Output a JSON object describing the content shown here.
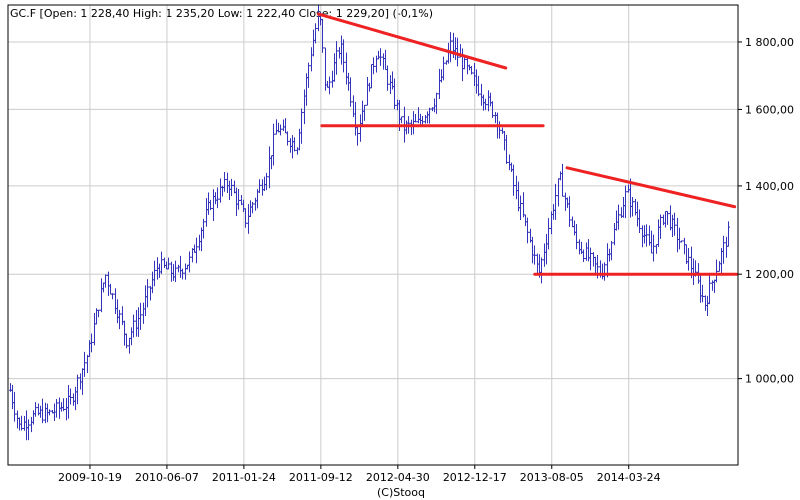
{
  "header": {
    "text": "GC.F [Open: 1 228,40  High: 1 235,20  Low: 1 222,40  Close: 1 229,20] (-0,1%)"
  },
  "footer": {
    "credit": "(C)Stooq"
  },
  "chart_data": {
    "type": "bar",
    "series_style": "ohlc",
    "colors": {
      "bars": "#3333bb",
      "trendlines": "#ee2222",
      "grid": "#cccccc",
      "frame": "#000000"
    },
    "grid": true,
    "y_axis_position": "right",
    "ylim": [
      860,
      1920
    ],
    "y_ticks": [
      {
        "value": 1000,
        "label": "1 000,00"
      },
      {
        "value": 1200,
        "label": "1 200,00"
      },
      {
        "value": 1400,
        "label": "1 400,00"
      },
      {
        "value": 1600,
        "label": "1 600,00"
      },
      {
        "value": 1800,
        "label": "1 800,00"
      }
    ],
    "xlim": [
      "2009-02-15",
      "2015-02-15"
    ],
    "x_ticks": [
      "2009-10-19",
      "2010-06-07",
      "2011-01-24",
      "2011-09-12",
      "2012-04-30",
      "2012-12-17",
      "2013-08-05",
      "2014-03-24"
    ],
    "price_path": [
      [
        "2009-02-20",
        980
      ],
      [
        "2009-03-20",
        920
      ],
      [
        "2009-05-10",
        940
      ],
      [
        "2009-06-15",
        940
      ],
      [
        "2009-08-20",
        960
      ],
      [
        "2009-10-15",
        1050
      ],
      [
        "2009-12-03",
        1200
      ],
      [
        "2010-02-05",
        1070
      ],
      [
        "2010-03-20",
        1120
      ],
      [
        "2010-05-10",
        1220
      ],
      [
        "2010-07-01",
        1200
      ],
      [
        "2010-08-15",
        1230
      ],
      [
        "2010-10-15",
        1360
      ],
      [
        "2010-12-07",
        1410
      ],
      [
        "2011-01-28",
        1320
      ],
      [
        "2011-03-30",
        1430
      ],
      [
        "2011-05-02",
        1550
      ],
      [
        "2011-06-30",
        1500
      ],
      [
        "2011-08-10",
        1760
      ],
      [
        "2011-09-06",
        1900
      ],
      [
        "2011-09-26",
        1640
      ],
      [
        "2011-11-08",
        1790
      ],
      [
        "2011-12-29",
        1540
      ],
      [
        "2012-02-28",
        1780
      ],
      [
        "2012-05-15",
        1550
      ],
      [
        "2012-06-28",
        1560
      ],
      [
        "2012-08-20",
        1630
      ],
      [
        "2012-10-05",
        1790
      ],
      [
        "2012-12-28",
        1660
      ],
      [
        "2013-02-20",
        1580
      ],
      [
        "2013-04-15",
        1390
      ],
      [
        "2013-06-27",
        1200
      ],
      [
        "2013-08-28",
        1420
      ],
      [
        "2013-10-15",
        1270
      ],
      [
        "2013-12-31",
        1200
      ],
      [
        "2014-03-17",
        1385
      ],
      [
        "2014-05-30",
        1245
      ],
      [
        "2014-07-10",
        1340
      ],
      [
        "2014-09-30",
        1210
      ],
      [
        "2014-11-07",
        1140
      ],
      [
        "2015-01-22",
        1300
      ]
    ],
    "trendlines": [
      {
        "from": [
          "2011-09-05",
          1890
        ],
        "to": [
          "2013-03-20",
          1720
        ]
      },
      {
        "from": [
          "2011-09-15",
          1555
        ],
        "to": [
          "2013-07-10",
          1555
        ]
      },
      {
        "from": [
          "2013-09-20",
          1445
        ],
        "to": [
          "2015-02-05",
          1350
        ]
      },
      {
        "from": [
          "2013-06-15",
          1200
        ],
        "to": [
          "2015-02-10",
          1200
        ]
      }
    ]
  }
}
